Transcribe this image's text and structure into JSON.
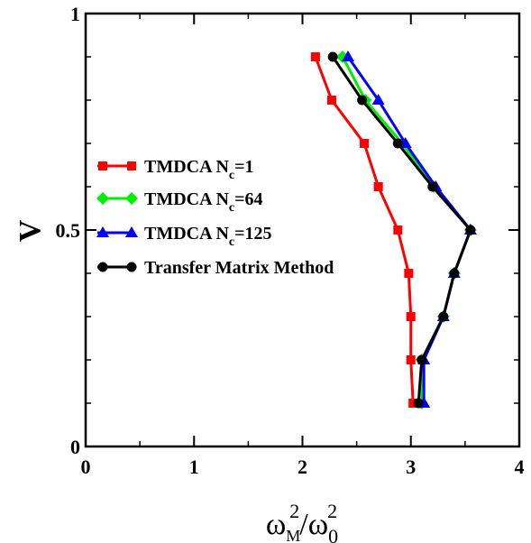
{
  "chart_data": {
    "type": "line",
    "xlabel": {
      "base1": "ω",
      "sup1": "2",
      "sub1": "M",
      "slash": "/",
      "base2": "ω",
      "sup2": "2",
      "sub2": "0"
    },
    "ylabel": "V",
    "xlim": [
      0,
      4
    ],
    "ylim": [
      0,
      1
    ],
    "xticks": [
      "0",
      "1",
      "2",
      "3",
      "4"
    ],
    "yticks": [
      "0",
      "0.5",
      "1"
    ],
    "legend_position": "left-center",
    "series": [
      {
        "name": "TMDCA N",
        "name_sub": "c",
        "name_suffix": "=1",
        "color": "#ff0000",
        "marker": "square",
        "points": [
          [
            2.12,
            0.9
          ],
          [
            2.27,
            0.8
          ],
          [
            2.57,
            0.7
          ],
          [
            2.7,
            0.6
          ],
          [
            2.88,
            0.5
          ],
          [
            2.98,
            0.4
          ],
          [
            3.0,
            0.3
          ],
          [
            3.0,
            0.2
          ],
          [
            3.02,
            0.1
          ]
        ]
      },
      {
        "name": "TMDCA N",
        "name_sub": "c",
        "name_suffix": "=64",
        "color": "#00ee00",
        "marker": "diamond",
        "points": [
          [
            2.37,
            0.9
          ],
          [
            2.58,
            0.8
          ],
          [
            2.92,
            0.7
          ],
          [
            3.21,
            0.6
          ],
          [
            3.55,
            0.5
          ],
          [
            3.4,
            0.4
          ],
          [
            3.3,
            0.3
          ],
          [
            3.1,
            0.2
          ],
          [
            3.1,
            0.1
          ]
        ]
      },
      {
        "name": "TMDCA N",
        "name_sub": "c",
        "name_suffix": "=125",
        "color": "#0000ff",
        "marker": "triangle",
        "points": [
          [
            2.42,
            0.9
          ],
          [
            2.7,
            0.8
          ],
          [
            2.95,
            0.7
          ],
          [
            3.23,
            0.6
          ],
          [
            3.55,
            0.5
          ],
          [
            3.4,
            0.4
          ],
          [
            3.3,
            0.3
          ],
          [
            3.12,
            0.2
          ],
          [
            3.12,
            0.1
          ]
        ]
      },
      {
        "name": "Transfer Matrix Method",
        "name_sub": "",
        "name_suffix": "",
        "color": "#000000",
        "marker": "circle",
        "points": [
          [
            2.28,
            0.9
          ],
          [
            2.55,
            0.8
          ],
          [
            2.88,
            0.7
          ],
          [
            3.2,
            0.6
          ],
          [
            3.55,
            0.5
          ],
          [
            3.4,
            0.4
          ],
          [
            3.3,
            0.3
          ],
          [
            3.1,
            0.2
          ],
          [
            3.07,
            0.1
          ]
        ]
      }
    ]
  }
}
